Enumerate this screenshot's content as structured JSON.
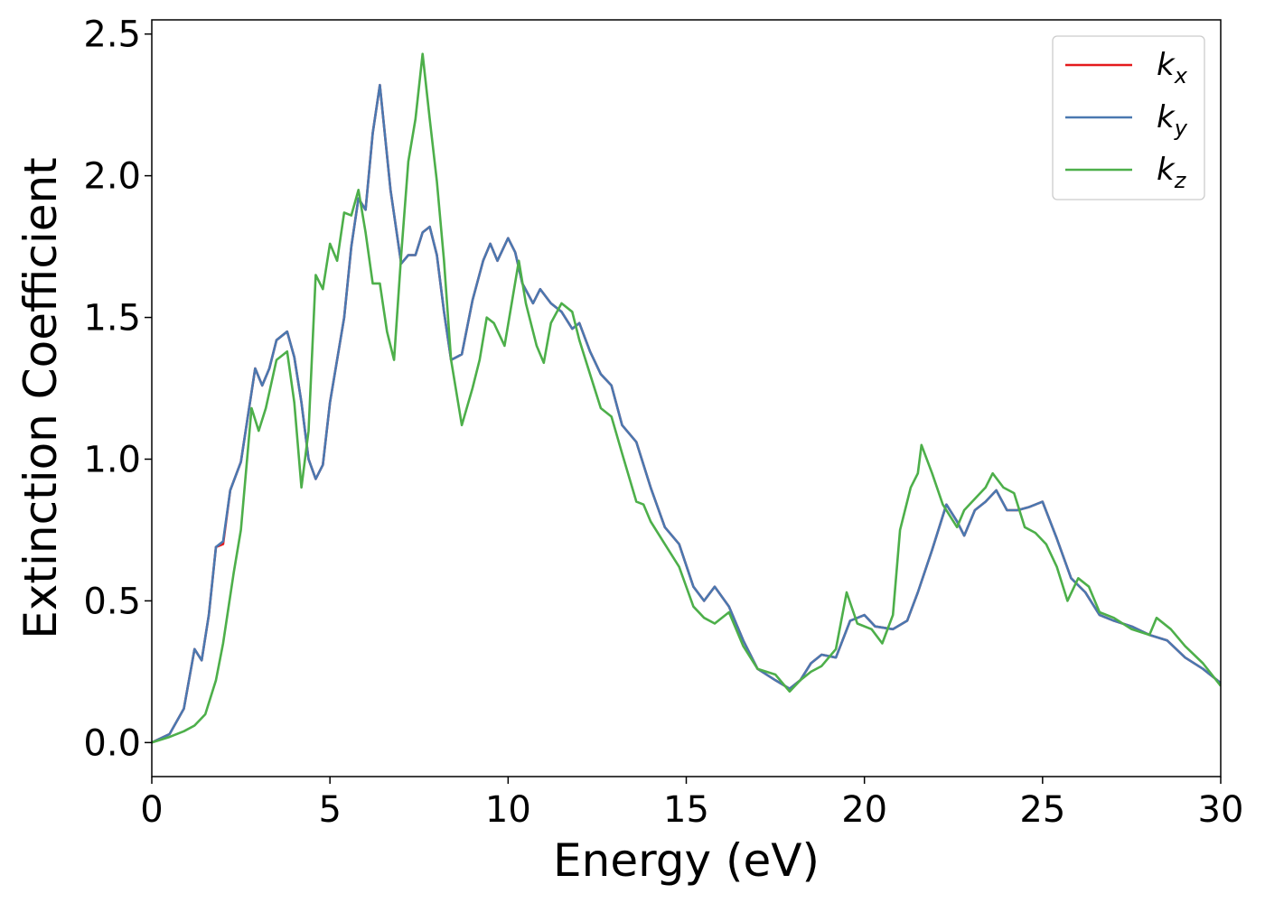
{
  "chart_data": {
    "type": "line",
    "title": "",
    "xlabel": "Energy (eV)",
    "ylabel": "Extinction Coefficient",
    "xlim": [
      0,
      30
    ],
    "ylim": [
      -0.12,
      2.55
    ],
    "xticks": [
      0,
      5,
      10,
      15,
      20,
      25,
      30
    ],
    "xtick_labels": [
      "0",
      "5",
      "10",
      "15",
      "20",
      "25",
      "30"
    ],
    "yticks": [
      0.0,
      0.5,
      1.0,
      1.5,
      2.0,
      2.5
    ],
    "ytick_labels": [
      "0.0",
      "0.5",
      "1.0",
      "1.5",
      "2.0",
      "2.5"
    ],
    "grid": false,
    "legend_position": "top-right",
    "series": [
      {
        "name": "kx",
        "legend_base": "k",
        "legend_sub": "x",
        "color": "#e41a1c",
        "points": [
          [
            0,
            0
          ],
          [
            0.5,
            0.03
          ],
          [
            0.9,
            0.12
          ],
          [
            1.2,
            0.33
          ],
          [
            1.4,
            0.29
          ],
          [
            1.6,
            0.45
          ],
          [
            1.8,
            0.69
          ],
          [
            2.0,
            0.7
          ],
          [
            2.2,
            0.89
          ],
          [
            2.5,
            0.99
          ],
          [
            2.9,
            1.32
          ],
          [
            3.1,
            1.26
          ],
          [
            3.3,
            1.32
          ],
          [
            3.5,
            1.42
          ],
          [
            3.8,
            1.45
          ],
          [
            4.0,
            1.36
          ],
          [
            4.2,
            1.2
          ],
          [
            4.4,
            1.0
          ],
          [
            4.6,
            0.93
          ],
          [
            4.8,
            0.98
          ],
          [
            5.0,
            1.2
          ],
          [
            5.4,
            1.5
          ],
          [
            5.6,
            1.75
          ],
          [
            5.8,
            1.92
          ],
          [
            6.0,
            1.88
          ],
          [
            6.2,
            2.15
          ],
          [
            6.4,
            2.32
          ],
          [
            6.7,
            1.95
          ],
          [
            7.0,
            1.69
          ],
          [
            7.2,
            1.72
          ],
          [
            7.4,
            1.72
          ],
          [
            7.6,
            1.8
          ],
          [
            7.8,
            1.82
          ],
          [
            8.0,
            1.72
          ],
          [
            8.2,
            1.52
          ],
          [
            8.4,
            1.35
          ],
          [
            8.7,
            1.37
          ],
          [
            9.0,
            1.56
          ],
          [
            9.3,
            1.7
          ],
          [
            9.5,
            1.76
          ],
          [
            9.7,
            1.7
          ],
          [
            10.0,
            1.78
          ],
          [
            10.2,
            1.73
          ],
          [
            10.4,
            1.62
          ],
          [
            10.7,
            1.55
          ],
          [
            10.9,
            1.6
          ],
          [
            11.2,
            1.55
          ],
          [
            11.5,
            1.52
          ],
          [
            11.8,
            1.46
          ],
          [
            12.0,
            1.48
          ],
          [
            12.3,
            1.38
          ],
          [
            12.6,
            1.3
          ],
          [
            12.9,
            1.26
          ],
          [
            13.2,
            1.12
          ],
          [
            13.6,
            1.06
          ],
          [
            14.0,
            0.9
          ],
          [
            14.4,
            0.76
          ],
          [
            14.8,
            0.7
          ],
          [
            15.2,
            0.55
          ],
          [
            15.5,
            0.5
          ],
          [
            15.8,
            0.55
          ],
          [
            16.2,
            0.48
          ],
          [
            16.6,
            0.36
          ],
          [
            17.0,
            0.26
          ],
          [
            17.5,
            0.22
          ],
          [
            17.9,
            0.19
          ],
          [
            18.2,
            0.22
          ],
          [
            18.5,
            0.28
          ],
          [
            18.8,
            0.31
          ],
          [
            19.2,
            0.3
          ],
          [
            19.6,
            0.43
          ],
          [
            20.0,
            0.45
          ],
          [
            20.3,
            0.41
          ],
          [
            20.8,
            0.4
          ],
          [
            21.2,
            0.43
          ],
          [
            21.5,
            0.53
          ],
          [
            21.9,
            0.68
          ],
          [
            22.3,
            0.84
          ],
          [
            22.6,
            0.78
          ],
          [
            22.8,
            0.73
          ],
          [
            23.1,
            0.82
          ],
          [
            23.4,
            0.85
          ],
          [
            23.7,
            0.89
          ],
          [
            24.0,
            0.82
          ],
          [
            24.3,
            0.82
          ],
          [
            24.6,
            0.83
          ],
          [
            25.0,
            0.85
          ],
          [
            25.4,
            0.72
          ],
          [
            25.8,
            0.58
          ],
          [
            26.2,
            0.53
          ],
          [
            26.6,
            0.45
          ],
          [
            27.0,
            0.43
          ],
          [
            27.5,
            0.41
          ],
          [
            28.0,
            0.38
          ],
          [
            28.5,
            0.36
          ],
          [
            29.0,
            0.3
          ],
          [
            29.5,
            0.26
          ],
          [
            30.0,
            0.21
          ]
        ]
      },
      {
        "name": "ky",
        "legend_base": "k",
        "legend_sub": "y",
        "color": "#4a78b0",
        "points": [
          [
            0,
            0
          ],
          [
            0.5,
            0.03
          ],
          [
            0.9,
            0.12
          ],
          [
            1.2,
            0.33
          ],
          [
            1.4,
            0.29
          ],
          [
            1.6,
            0.45
          ],
          [
            1.8,
            0.69
          ],
          [
            2.0,
            0.71
          ],
          [
            2.2,
            0.89
          ],
          [
            2.5,
            0.99
          ],
          [
            2.9,
            1.32
          ],
          [
            3.1,
            1.26
          ],
          [
            3.3,
            1.32
          ],
          [
            3.5,
            1.42
          ],
          [
            3.8,
            1.45
          ],
          [
            4.0,
            1.36
          ],
          [
            4.2,
            1.2
          ],
          [
            4.4,
            1.0
          ],
          [
            4.6,
            0.93
          ],
          [
            4.8,
            0.98
          ],
          [
            5.0,
            1.2
          ],
          [
            5.4,
            1.5
          ],
          [
            5.6,
            1.75
          ],
          [
            5.8,
            1.92
          ],
          [
            6.0,
            1.88
          ],
          [
            6.2,
            2.15
          ],
          [
            6.4,
            2.32
          ],
          [
            6.7,
            1.95
          ],
          [
            7.0,
            1.69
          ],
          [
            7.2,
            1.72
          ],
          [
            7.4,
            1.72
          ],
          [
            7.6,
            1.8
          ],
          [
            7.8,
            1.82
          ],
          [
            8.0,
            1.72
          ],
          [
            8.2,
            1.52
          ],
          [
            8.4,
            1.35
          ],
          [
            8.7,
            1.37
          ],
          [
            9.0,
            1.56
          ],
          [
            9.3,
            1.7
          ],
          [
            9.5,
            1.76
          ],
          [
            9.7,
            1.7
          ],
          [
            10.0,
            1.78
          ],
          [
            10.2,
            1.73
          ],
          [
            10.4,
            1.62
          ],
          [
            10.7,
            1.55
          ],
          [
            10.9,
            1.6
          ],
          [
            11.2,
            1.55
          ],
          [
            11.5,
            1.52
          ],
          [
            11.8,
            1.46
          ],
          [
            12.0,
            1.48
          ],
          [
            12.3,
            1.38
          ],
          [
            12.6,
            1.3
          ],
          [
            12.9,
            1.26
          ],
          [
            13.2,
            1.12
          ],
          [
            13.6,
            1.06
          ],
          [
            14.0,
            0.9
          ],
          [
            14.4,
            0.76
          ],
          [
            14.8,
            0.7
          ],
          [
            15.2,
            0.55
          ],
          [
            15.5,
            0.5
          ],
          [
            15.8,
            0.55
          ],
          [
            16.2,
            0.48
          ],
          [
            16.6,
            0.36
          ],
          [
            17.0,
            0.26
          ],
          [
            17.5,
            0.22
          ],
          [
            17.9,
            0.19
          ],
          [
            18.2,
            0.22
          ],
          [
            18.5,
            0.28
          ],
          [
            18.8,
            0.31
          ],
          [
            19.2,
            0.3
          ],
          [
            19.6,
            0.43
          ],
          [
            20.0,
            0.45
          ],
          [
            20.3,
            0.41
          ],
          [
            20.8,
            0.4
          ],
          [
            21.2,
            0.43
          ],
          [
            21.5,
            0.53
          ],
          [
            21.9,
            0.68
          ],
          [
            22.3,
            0.84
          ],
          [
            22.6,
            0.78
          ],
          [
            22.8,
            0.73
          ],
          [
            23.1,
            0.82
          ],
          [
            23.4,
            0.85
          ],
          [
            23.7,
            0.89
          ],
          [
            24.0,
            0.82
          ],
          [
            24.3,
            0.82
          ],
          [
            24.6,
            0.83
          ],
          [
            25.0,
            0.85
          ],
          [
            25.4,
            0.72
          ],
          [
            25.8,
            0.58
          ],
          [
            26.2,
            0.53
          ],
          [
            26.6,
            0.45
          ],
          [
            27.0,
            0.43
          ],
          [
            27.5,
            0.41
          ],
          [
            28.0,
            0.38
          ],
          [
            28.5,
            0.36
          ],
          [
            29.0,
            0.3
          ],
          [
            29.5,
            0.26
          ],
          [
            30.0,
            0.21
          ]
        ]
      },
      {
        "name": "kz",
        "legend_base": "k",
        "legend_sub": "z",
        "color": "#4daf4a",
        "points": [
          [
            0,
            0
          ],
          [
            0.5,
            0.02
          ],
          [
            0.9,
            0.04
          ],
          [
            1.2,
            0.06
          ],
          [
            1.5,
            0.1
          ],
          [
            1.8,
            0.22
          ],
          [
            2.0,
            0.35
          ],
          [
            2.3,
            0.6
          ],
          [
            2.5,
            0.75
          ],
          [
            2.8,
            1.18
          ],
          [
            3.0,
            1.1
          ],
          [
            3.2,
            1.18
          ],
          [
            3.5,
            1.35
          ],
          [
            3.7,
            1.37
          ],
          [
            3.8,
            1.38
          ],
          [
            4.0,
            1.2
          ],
          [
            4.2,
            0.9
          ],
          [
            4.4,
            1.1
          ],
          [
            4.6,
            1.65
          ],
          [
            4.8,
            1.6
          ],
          [
            5.0,
            1.76
          ],
          [
            5.2,
            1.7
          ],
          [
            5.4,
            1.87
          ],
          [
            5.6,
            1.86
          ],
          [
            5.8,
            1.95
          ],
          [
            6.0,
            1.8
          ],
          [
            6.2,
            1.62
          ],
          [
            6.4,
            1.62
          ],
          [
            6.6,
            1.45
          ],
          [
            6.8,
            1.35
          ],
          [
            7.0,
            1.72
          ],
          [
            7.2,
            2.05
          ],
          [
            7.4,
            2.2
          ],
          [
            7.6,
            2.43
          ],
          [
            7.8,
            2.2
          ],
          [
            8.0,
            1.98
          ],
          [
            8.2,
            1.7
          ],
          [
            8.4,
            1.35
          ],
          [
            8.7,
            1.12
          ],
          [
            9.0,
            1.25
          ],
          [
            9.2,
            1.35
          ],
          [
            9.4,
            1.5
          ],
          [
            9.6,
            1.48
          ],
          [
            9.9,
            1.4
          ],
          [
            10.1,
            1.55
          ],
          [
            10.3,
            1.7
          ],
          [
            10.5,
            1.55
          ],
          [
            10.8,
            1.4
          ],
          [
            11.0,
            1.34
          ],
          [
            11.2,
            1.48
          ],
          [
            11.5,
            1.55
          ],
          [
            11.8,
            1.52
          ],
          [
            12.0,
            1.42
          ],
          [
            12.3,
            1.3
          ],
          [
            12.6,
            1.18
          ],
          [
            12.9,
            1.15
          ],
          [
            13.2,
            1.02
          ],
          [
            13.6,
            0.85
          ],
          [
            13.8,
            0.84
          ],
          [
            14.0,
            0.78
          ],
          [
            14.4,
            0.7
          ],
          [
            14.8,
            0.62
          ],
          [
            15.2,
            0.48
          ],
          [
            15.5,
            0.44
          ],
          [
            15.8,
            0.42
          ],
          [
            16.2,
            0.46
          ],
          [
            16.6,
            0.34
          ],
          [
            17.0,
            0.26
          ],
          [
            17.5,
            0.24
          ],
          [
            17.9,
            0.18
          ],
          [
            18.2,
            0.22
          ],
          [
            18.5,
            0.25
          ],
          [
            18.8,
            0.27
          ],
          [
            19.2,
            0.33
          ],
          [
            19.5,
            0.53
          ],
          [
            19.8,
            0.42
          ],
          [
            20.2,
            0.4
          ],
          [
            20.5,
            0.35
          ],
          [
            20.8,
            0.45
          ],
          [
            21.0,
            0.75
          ],
          [
            21.3,
            0.9
          ],
          [
            21.5,
            0.95
          ],
          [
            21.6,
            1.05
          ],
          [
            21.9,
            0.95
          ],
          [
            22.2,
            0.84
          ],
          [
            22.4,
            0.8
          ],
          [
            22.6,
            0.76
          ],
          [
            22.8,
            0.82
          ],
          [
            23.1,
            0.86
          ],
          [
            23.4,
            0.9
          ],
          [
            23.6,
            0.95
          ],
          [
            23.9,
            0.9
          ],
          [
            24.2,
            0.88
          ],
          [
            24.5,
            0.76
          ],
          [
            24.8,
            0.74
          ],
          [
            25.1,
            0.7
          ],
          [
            25.4,
            0.62
          ],
          [
            25.7,
            0.5
          ],
          [
            26.0,
            0.58
          ],
          [
            26.3,
            0.55
          ],
          [
            26.6,
            0.46
          ],
          [
            27.0,
            0.44
          ],
          [
            27.5,
            0.4
          ],
          [
            28.0,
            0.38
          ],
          [
            28.2,
            0.44
          ],
          [
            28.6,
            0.4
          ],
          [
            29.0,
            0.34
          ],
          [
            29.5,
            0.28
          ],
          [
            30.0,
            0.2
          ]
        ]
      }
    ]
  }
}
